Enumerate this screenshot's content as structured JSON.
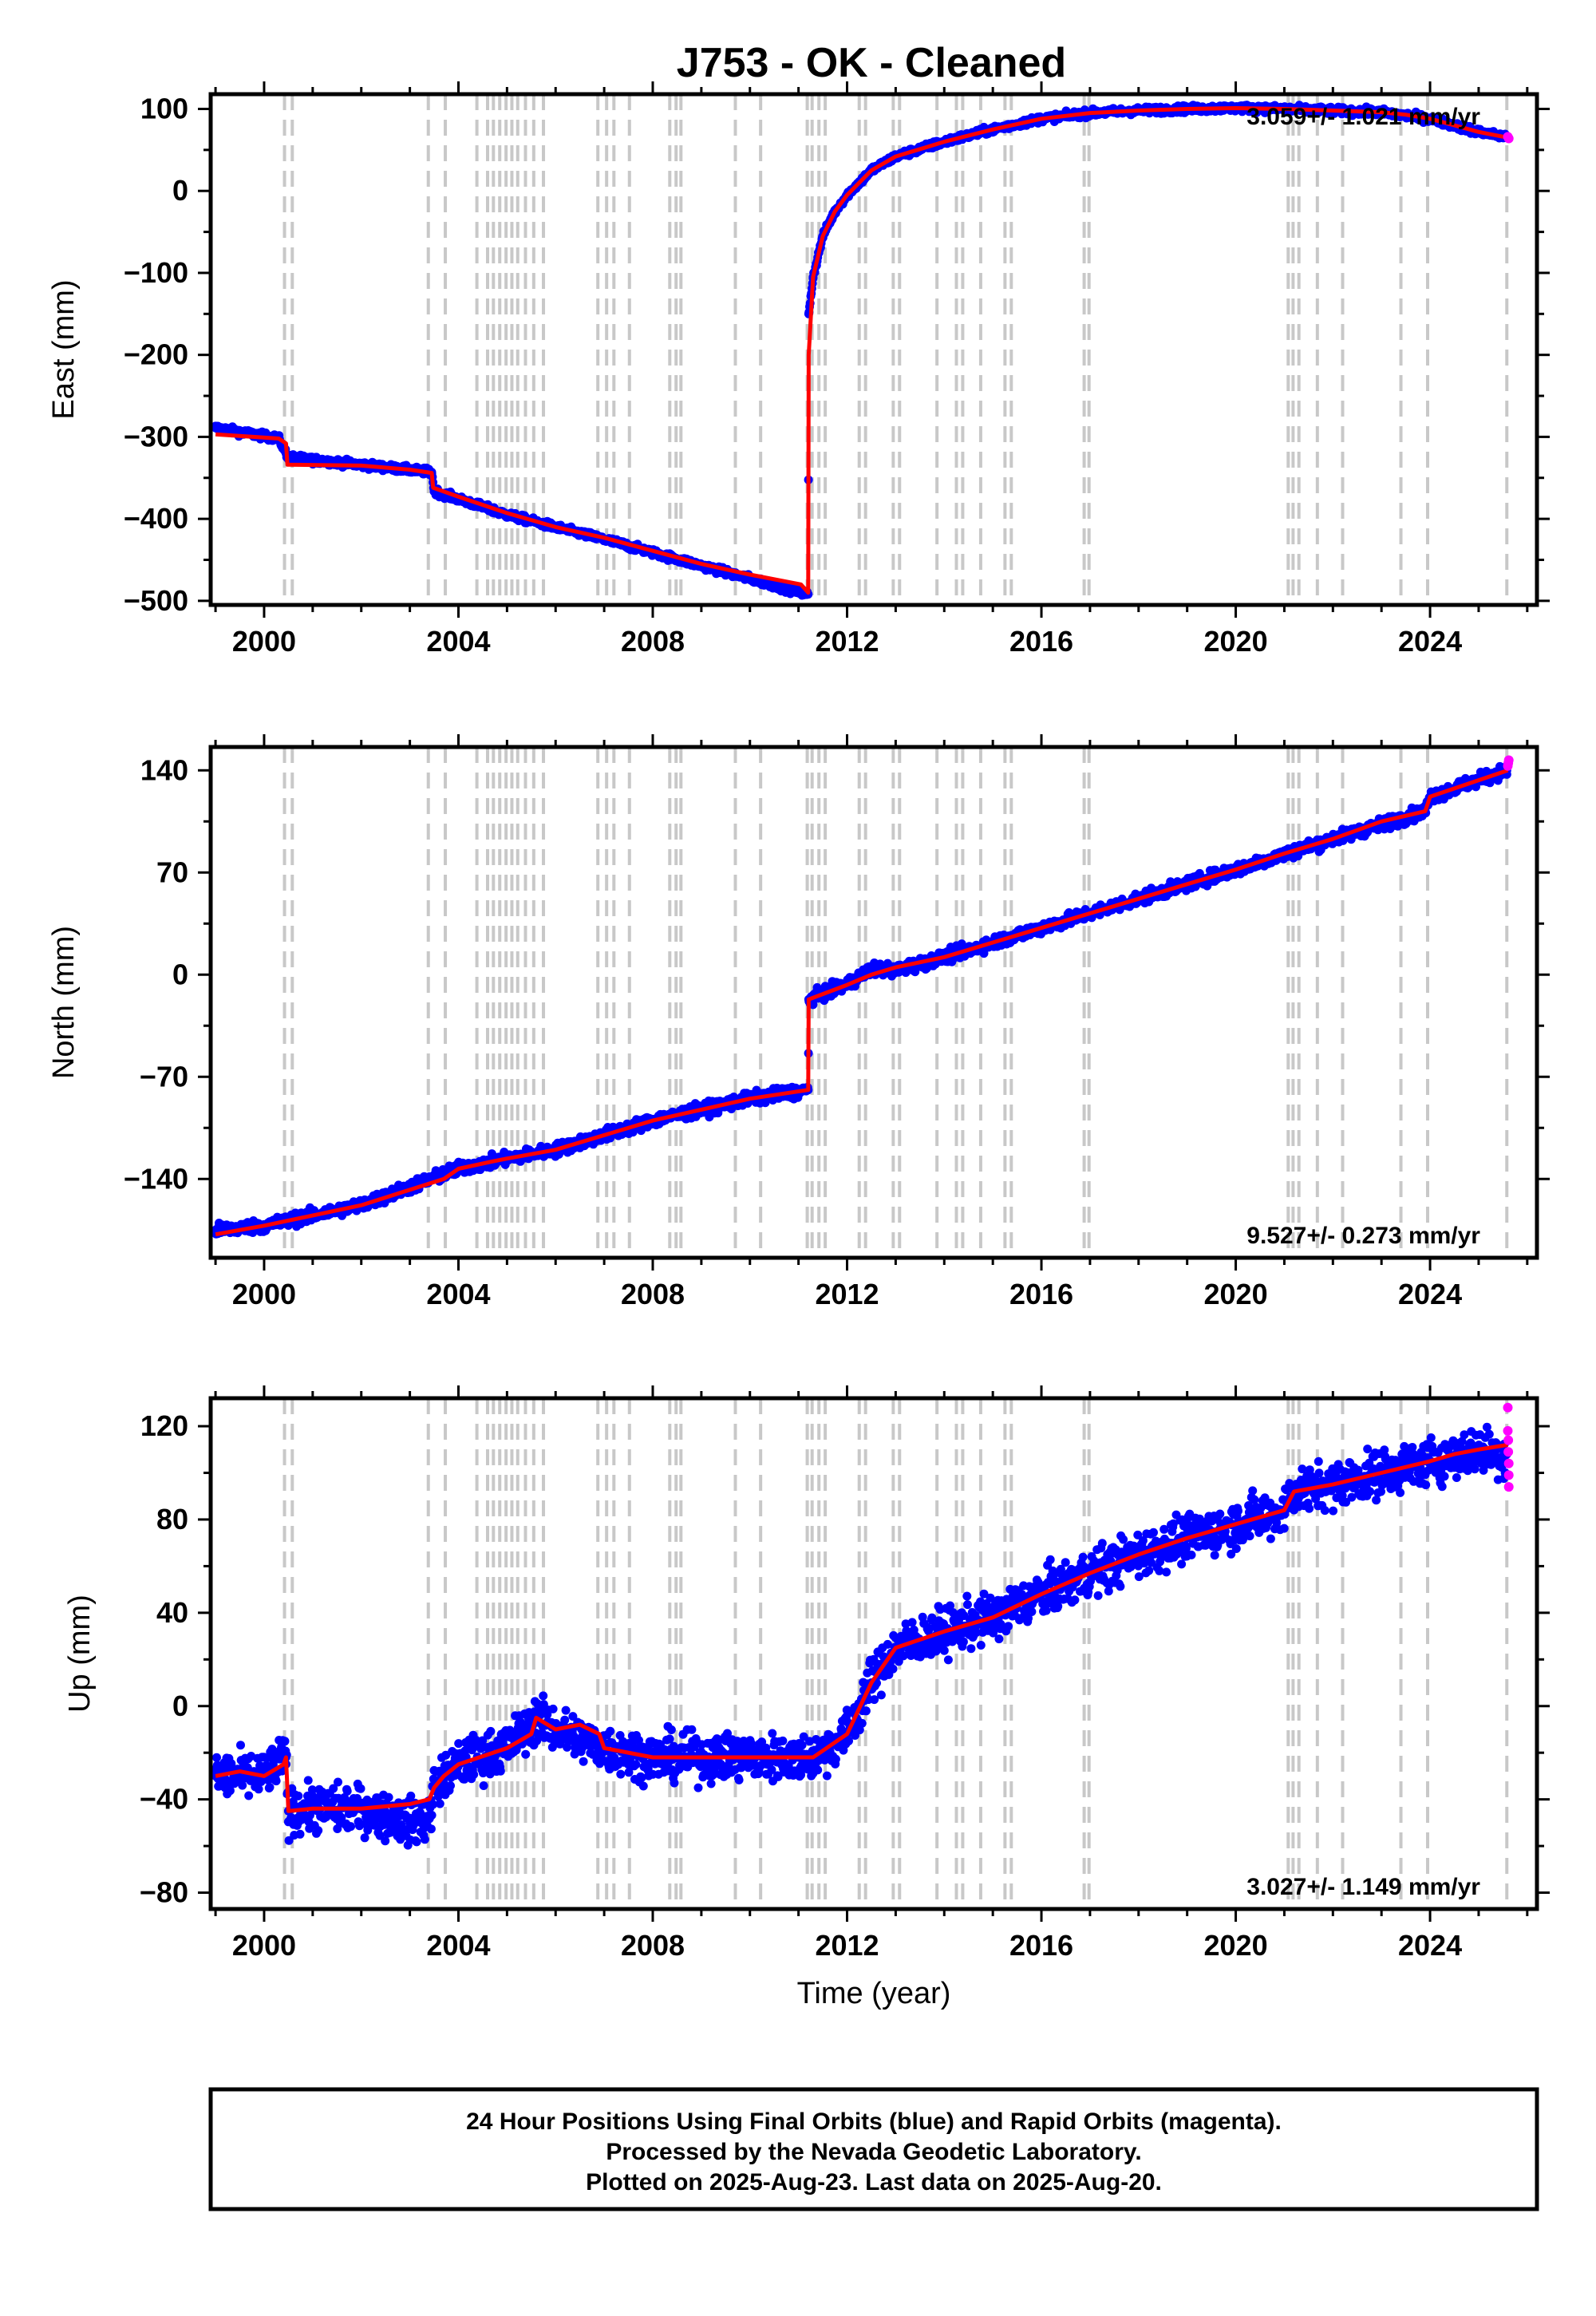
{
  "title": "J753  - OK - Cleaned",
  "footer": {
    "line1": "24 Hour Positions Using Final Orbits (blue) and Rapid Orbits (magenta).",
    "line2": "Processed by the Nevada Geodetic Laboratory.",
    "line3": "Plotted on 2025-Aug-23. Last data on 2025-Aug-20."
  },
  "colors": {
    "final_orbits": "#0000ff",
    "rapid_orbits": "#ff00ff",
    "model_fit": "#ff0000",
    "event_lines": "#c8c8c8",
    "frame": "#000000"
  },
  "chart_data": [
    {
      "type": "scatter",
      "panel": "east",
      "ylabel": "East (mm)",
      "xlabel": "",
      "xlim": [
        1998.9,
        2026.2
      ],
      "ylim": [
        -505,
        118
      ],
      "yticks": [
        -500,
        -400,
        -300,
        -200,
        -100,
        0,
        100
      ],
      "ytick_labels": [
        "−500",
        "−400",
        "−300",
        "−200",
        "−100",
        "0",
        "100"
      ],
      "xticks": [
        2000,
        2004,
        2008,
        2012,
        2016,
        2020,
        2024
      ],
      "xtick_labels": [
        "2000",
        "2004",
        "2008",
        "2012",
        "2016",
        "2020",
        "2024"
      ],
      "rate_label": "3.059+/- 1.021 mm/yr",
      "rate_position": "top-right",
      "series": [
        {
          "role": "model_fit",
          "x": [
            1999.0,
            2000.3,
            2000.45,
            2000.48,
            2002.0,
            2003.0,
            2003.45,
            2003.48,
            2004.0,
            2005.0,
            2006.0,
            2007.0,
            2008.0,
            2009.0,
            2010.0,
            2011.05,
            2011.2,
            2011.21,
            2011.3,
            2011.5,
            2011.75,
            2012.0,
            2012.5,
            2013.0,
            2014.0,
            2015.0,
            2016.0,
            2017.0,
            2018.0,
            2019.0,
            2020.0,
            2021.0,
            2022.0,
            2023.0,
            2023.5,
            2024.0,
            2024.5,
            2025.0,
            2025.6
          ],
          "y": [
            -297,
            -302,
            -308,
            -334,
            -335,
            -340,
            -344,
            -362,
            -373,
            -393,
            -410,
            -423,
            -439,
            -455,
            -468,
            -480,
            -490,
            -200,
            -105,
            -55,
            -25,
            -5,
            25,
            42,
            60,
            75,
            88,
            95,
            98,
            100,
            101,
            100,
            98,
            96,
            93,
            88,
            80,
            72,
            65
          ]
        },
        {
          "role": "final_orbits",
          "noise_mm": 3,
          "x": [
            1999.0,
            2000.3,
            2000.5,
            2002.0,
            2003.45,
            2003.5,
            2005.0,
            2007.0,
            2009.0,
            2011.2,
            2011.21,
            2011.3,
            2011.5,
            2011.75,
            2012.0,
            2012.5,
            2013.0,
            2014.0,
            2015.0,
            2016.0,
            2017.0,
            2018.0,
            2019.0,
            2020.0,
            2021.0,
            2022.0,
            2023.0,
            2024.0,
            2025.0,
            2025.58
          ],
          "y": [
            -289,
            -302,
            -325,
            -334,
            -343,
            -366,
            -395,
            -425,
            -457,
            -492,
            -150,
            -105,
            -55,
            -25,
            -5,
            25,
            42,
            60,
            75,
            88,
            95,
            98,
            100,
            101,
            100,
            98,
            96,
            88,
            72,
            66
          ]
        },
        {
          "role": "rapid_orbits",
          "x": [
            2025.6,
            2025.62
          ],
          "y": [
            66,
            64
          ]
        }
      ]
    },
    {
      "type": "scatter",
      "panel": "north",
      "ylabel": "North (mm)",
      "xlabel": "",
      "xlim": [
        1998.9,
        2026.2
      ],
      "ylim": [
        -194,
        156
      ],
      "yticks": [
        -140,
        -70,
        0,
        70,
        140
      ],
      "ytick_labels": [
        "−140",
        "−70",
        "0",
        "70",
        "140"
      ],
      "xticks": [
        2000,
        2004,
        2008,
        2012,
        2016,
        2020,
        2024
      ],
      "xtick_labels": [
        "2000",
        "2004",
        "2008",
        "2012",
        "2016",
        "2020",
        "2024"
      ],
      "rate_label": "9.527+/- 0.273 mm/yr",
      "rate_position": "bottom-right",
      "series": [
        {
          "role": "model_fit",
          "x": [
            1999.0,
            2000.0,
            2002.0,
            2003.7,
            2004.0,
            2004.7,
            2005.0,
            2006.0,
            2008.0,
            2010.0,
            2011.2,
            2011.21,
            2012.0,
            2012.5,
            2013.0,
            2014.0,
            2016.0,
            2018.0,
            2020.0,
            2021.0,
            2022.0,
            2023.0,
            2023.9,
            2024.0,
            2025.6
          ],
          "y": [
            -178,
            -172,
            -158,
            -140,
            -133,
            -128,
            -126,
            -120,
            -100,
            -85,
            -79,
            -17,
            -7,
            0,
            5,
            12,
            32,
            52,
            72,
            83,
            93,
            105,
            112,
            122,
            140
          ]
        },
        {
          "role": "final_orbits",
          "noise_mm": 3,
          "x": [
            1999.0,
            2000.0,
            2002.0,
            2004.0,
            2005.0,
            2006.0,
            2008.0,
            2010.0,
            2011.2,
            2011.21,
            2012.0,
            2012.5,
            2013.0,
            2014.0,
            2016.0,
            2018.0,
            2020.0,
            2022.0,
            2023.9,
            2024.0,
            2025.58
          ],
          "y": [
            -175,
            -172,
            -158,
            -133,
            -126,
            -120,
            -100,
            -85,
            -79,
            -17,
            -7,
            4,
            3,
            12,
            32,
            52,
            72,
            93,
            112,
            122,
            140
          ]
        },
        {
          "role": "rapid_orbits",
          "x": [
            2025.6,
            2025.61,
            2025.62
          ],
          "y": [
            143,
            145,
            147
          ]
        }
      ]
    },
    {
      "type": "scatter",
      "panel": "up",
      "ylabel": "Up (mm)",
      "xlabel": "Time (year)",
      "xlim": [
        1998.9,
        2026.2
      ],
      "ylim": [
        -87,
        132
      ],
      "yticks": [
        -80,
        -40,
        0,
        40,
        80,
        120
      ],
      "ytick_labels": [
        "−80",
        "−40",
        "0",
        "40",
        "80",
        "120"
      ],
      "xticks": [
        2000,
        2004,
        2008,
        2012,
        2016,
        2020,
        2024
      ],
      "xtick_labels": [
        "2000",
        "2004",
        "2008",
        "2012",
        "2016",
        "2020",
        "2024"
      ],
      "rate_label": "3.027+/- 1.149 mm/yr",
      "rate_position": "bottom-right",
      "series": [
        {
          "role": "model_fit",
          "x": [
            1999.0,
            1999.5,
            2000.0,
            2000.4,
            2000.45,
            2000.5,
            2001.0,
            2002.0,
            2003.0,
            2003.4,
            2003.5,
            2003.7,
            2004.0,
            2005.0,
            2005.5,
            2005.6,
            2006.0,
            2006.5,
            2006.9,
            2007.0,
            2008.0,
            2009.0,
            2010.0,
            2011.0,
            2011.3,
            2012.0,
            2012.5,
            2013.0,
            2014.0,
            2015.0,
            2016.0,
            2017.0,
            2018.0,
            2019.0,
            2020.0,
            2021.0,
            2021.2,
            2022.0,
            2023.0,
            2024.0,
            2024.5,
            2025.0,
            2025.6
          ],
          "y": [
            -30,
            -28,
            -30,
            -25,
            -22,
            -45,
            -44,
            -44,
            -42,
            -40,
            -35,
            -30,
            -25,
            -18,
            -12,
            -5,
            -10,
            -8,
            -12,
            -18,
            -22,
            -22,
            -22,
            -22,
            -22,
            -12,
            10,
            25,
            32,
            38,
            48,
            57,
            65,
            72,
            78,
            84,
            92,
            95,
            100,
            105,
            108,
            110,
            112
          ]
        },
        {
          "role": "final_orbits",
          "noise_mm": 7,
          "x": [
            1999.0,
            2000.0,
            2000.45,
            2000.5,
            2001.0,
            2002.0,
            2003.0,
            2003.4,
            2003.5,
            2004.0,
            2005.0,
            2005.6,
            2006.0,
            2007.0,
            2008.0,
            2009.0,
            2010.0,
            2011.0,
            2011.3,
            2012.0,
            2012.5,
            2013.0,
            2014.0,
            2015.0,
            2016.0,
            2017.0,
            2018.0,
            2019.0,
            2020.0,
            2021.0,
            2021.2,
            2022.0,
            2023.0,
            2024.0,
            2025.0,
            2025.58
          ],
          "y": [
            -30,
            -30,
            -22,
            -45,
            -44,
            -44,
            -50,
            -48,
            -35,
            -25,
            -18,
            -5,
            -10,
            -18,
            -22,
            -22,
            -22,
            -22,
            -22,
            -12,
            10,
            25,
            32,
            38,
            48,
            57,
            65,
            72,
            78,
            84,
            92,
            95,
            100,
            105,
            110,
            108
          ]
        },
        {
          "role": "rapid_orbits",
          "x": [
            2025.6,
            2025.6,
            2025.61,
            2025.61,
            2025.62,
            2025.62,
            2025.62
          ],
          "y": [
            128,
            118,
            114,
            109,
            104,
            99,
            94
          ]
        }
      ]
    }
  ],
  "event_years": [
    2000.42,
    2000.58,
    2003.38,
    2003.73,
    2004.38,
    2004.6,
    2004.72,
    2004.85,
    2004.98,
    2005.1,
    2005.22,
    2005.38,
    2005.55,
    2005.75,
    2006.87,
    2007.05,
    2007.2,
    2007.52,
    2008.35,
    2008.48,
    2008.58,
    2009.7,
    2010.22,
    2011.18,
    2011.28,
    2011.42,
    2011.55,
    2012.25,
    2012.38,
    2012.95,
    2013.08,
    2013.85,
    2014.25,
    2014.38,
    2014.75,
    2015.25,
    2015.38,
    2016.88,
    2016.98,
    2021.08,
    2021.18,
    2021.3,
    2021.68,
    2022.2,
    2023.4,
    2023.95,
    2025.58
  ]
}
